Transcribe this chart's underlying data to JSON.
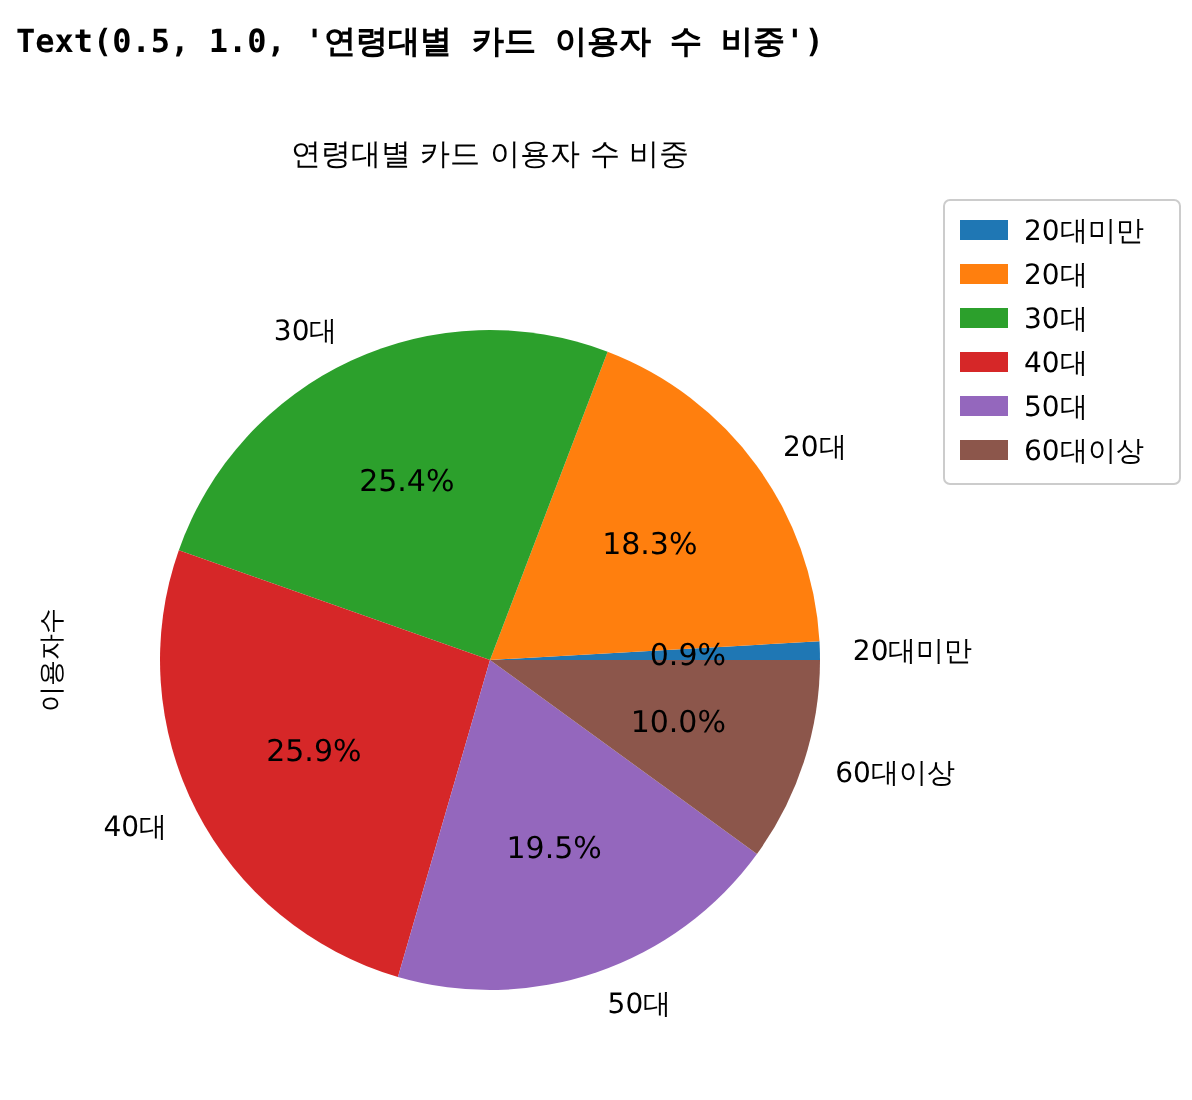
{
  "chart_data": {
    "type": "pie",
    "title": "연령대별 카드 이용자 수 비중",
    "ylabel": "이용자수",
    "annotations": [
      "Text(0.5, 1.0, '연령대별 카드 이용자 수 비중')"
    ],
    "categories": [
      "20대미만",
      "20대",
      "30대",
      "40대",
      "50대",
      "60대이상"
    ],
    "values": [
      0.9,
      18.3,
      25.4,
      25.9,
      19.5,
      10.0
    ],
    "colors": [
      "#1f77b4",
      "#ff7f0e",
      "#2ca02c",
      "#d62728",
      "#9467bd",
      "#8c564b"
    ],
    "value_labels": [
      "0.9%",
      "18.3%",
      "25.4%",
      "25.9%",
      "19.5%",
      "10.0%"
    ],
    "legend": "top right"
  }
}
